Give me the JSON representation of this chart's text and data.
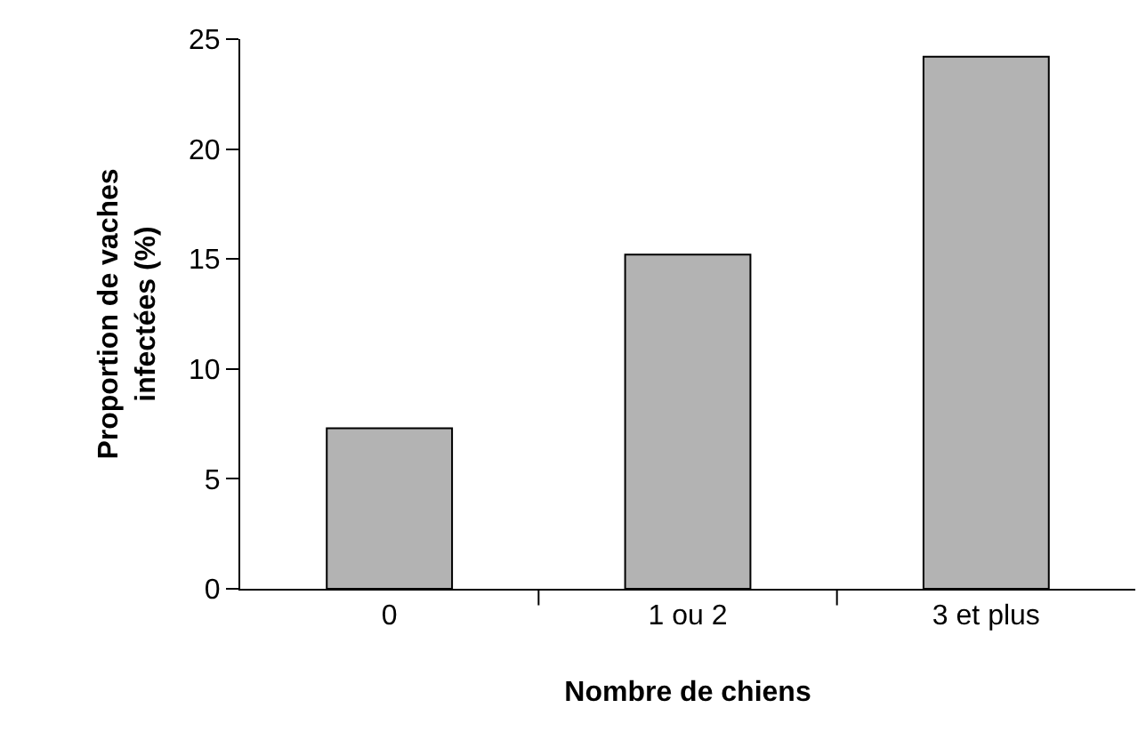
{
  "chart_data": {
    "type": "bar",
    "categories": [
      "0",
      "1 ou 2",
      "3 et plus"
    ],
    "values": [
      7.3,
      15.2,
      24.2
    ],
    "color": "#b3b3b3",
    "xlabel": "Nombre de chiens",
    "ylabel": "Proportion de vaches\ninfectées (%)",
    "ylim": [
      0,
      25
    ],
    "yticks": [
      0,
      5,
      10,
      15,
      20,
      25
    ]
  }
}
